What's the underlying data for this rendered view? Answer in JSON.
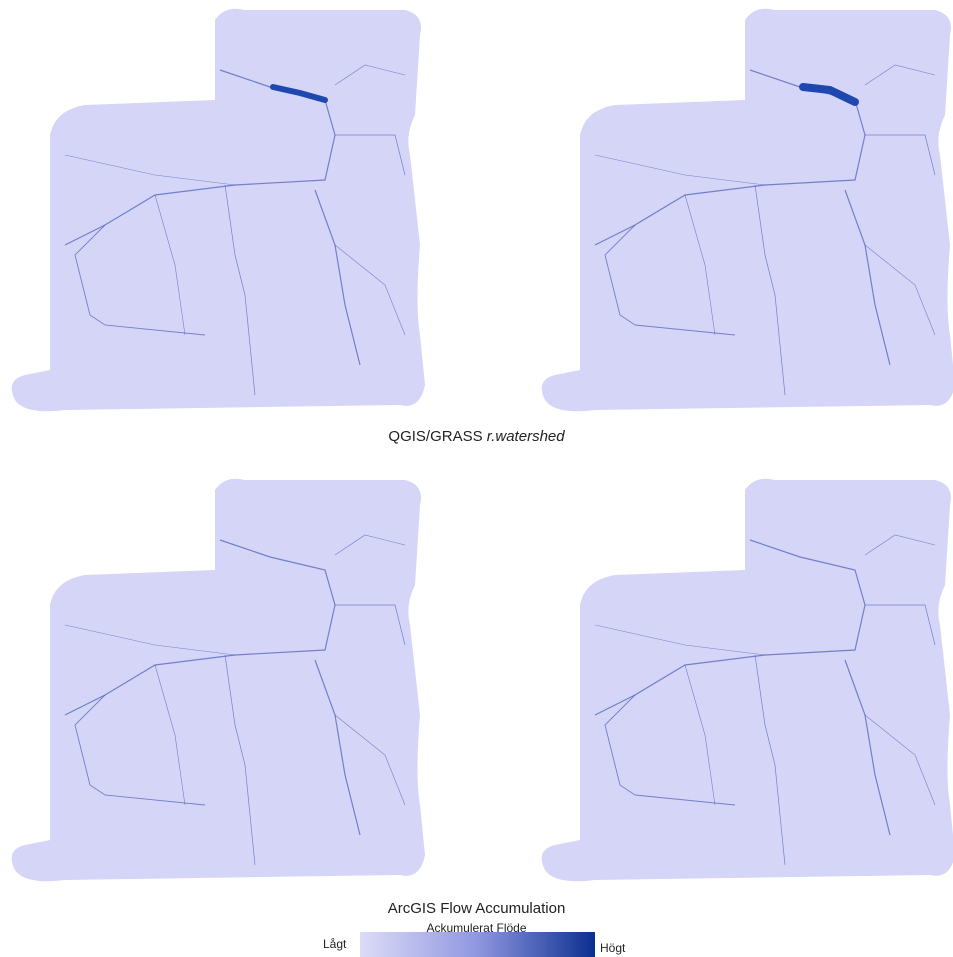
{
  "captions": {
    "top": {
      "software": "QGIS/GRASS",
      "tool": "r.watershed"
    },
    "bottom": "ArcGIS Flow Accumulation"
  },
  "legend": {
    "title": "Ackumulerat Flöde",
    "low": "Lågt",
    "high": "Högt"
  }
}
